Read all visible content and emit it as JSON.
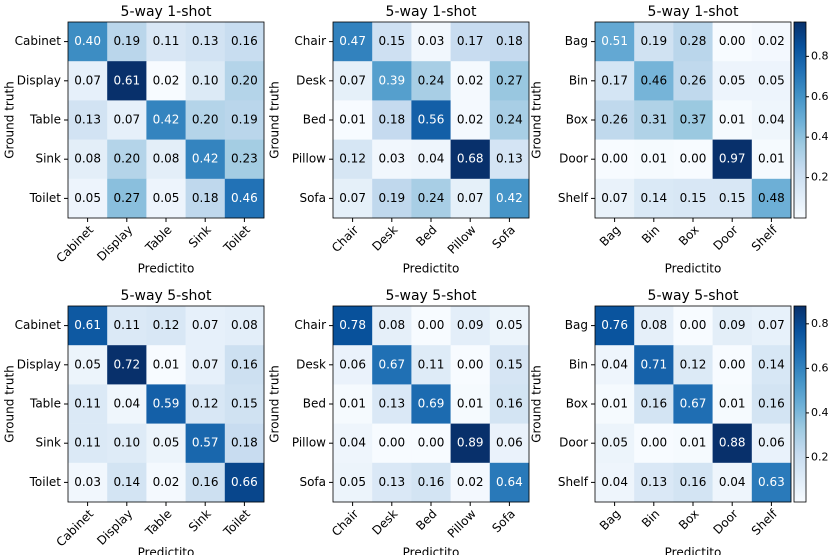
{
  "chart_data": [
    {
      "type": "heatmap",
      "title": "5-way 1-shot",
      "x_label": "Predictito",
      "y_label": "Ground truth",
      "categories": [
        "Cabinet",
        "Display",
        "Table",
        "Sink",
        "Toilet"
      ],
      "values": [
        [
          0.4,
          0.19,
          0.11,
          0.13,
          0.16
        ],
        [
          0.07,
          0.61,
          0.02,
          0.1,
          0.2
        ],
        [
          0.13,
          0.07,
          0.42,
          0.2,
          0.19
        ],
        [
          0.08,
          0.2,
          0.08,
          0.42,
          0.23
        ],
        [
          0.05,
          0.27,
          0.05,
          0.18,
          0.46
        ]
      ],
      "value_labels": [
        [
          "0.40",
          "0.19",
          "0.11",
          "0.13",
          "0.16"
        ],
        [
          "0.07",
          "0.61",
          "0.02",
          "0.10",
          "0.20"
        ],
        [
          "0.13",
          "0.07",
          "0.42",
          "0.20",
          "0.19"
        ],
        [
          "0.08",
          "0.20",
          "0.08",
          "0.42",
          "0.23"
        ],
        [
          "0.05",
          "0.27",
          "0.05",
          "0.18",
          "0.46"
        ]
      ],
      "zlim": [
        0.02,
        0.61
      ],
      "colormap": "Blues",
      "colorbar": false
    },
    {
      "type": "heatmap",
      "title": "5-way 1-shot",
      "x_label": "Predictito",
      "y_label": "Ground truth",
      "categories": [
        "Chair",
        "Desk",
        "Bed",
        "Pillow",
        "Sofa"
      ],
      "values": [
        [
          0.47,
          0.15,
          0.03,
          0.17,
          0.18
        ],
        [
          0.07,
          0.39,
          0.24,
          0.02,
          0.27
        ],
        [
          0.01,
          0.18,
          0.56,
          0.02,
          0.24
        ],
        [
          0.12,
          0.03,
          0.04,
          0.68,
          0.13
        ],
        [
          0.07,
          0.19,
          0.24,
          0.07,
          0.42
        ]
      ],
      "value_labels": [
        [
          "0.47",
          "0.15",
          "0.03",
          "0.17",
          "0.18"
        ],
        [
          "0.07",
          "0.39",
          "0.24",
          "0.02",
          "0.27"
        ],
        [
          "0.01",
          "0.18",
          "0.56",
          "0.02",
          "0.24"
        ],
        [
          "0.12",
          "0.03",
          "0.04",
          "0.68",
          "0.13"
        ],
        [
          "0.07",
          "0.19",
          "0.24",
          "0.07",
          "0.42"
        ]
      ],
      "zlim": [
        0.01,
        0.68
      ],
      "colormap": "Blues",
      "colorbar": false
    },
    {
      "type": "heatmap",
      "title": "5-way 1-shot",
      "x_label": "Predictito",
      "y_label": "Ground truth",
      "categories": [
        "Bag",
        "Bin",
        "Box",
        "Door",
        "Shelf"
      ],
      "values": [
        [
          0.51,
          0.19,
          0.28,
          0.0,
          0.02
        ],
        [
          0.17,
          0.46,
          0.26,
          0.05,
          0.05
        ],
        [
          0.26,
          0.31,
          0.37,
          0.01,
          0.04
        ],
        [
          0.0,
          0.01,
          0.0,
          0.97,
          0.01
        ],
        [
          0.07,
          0.14,
          0.15,
          0.15,
          0.48
        ]
      ],
      "value_labels": [
        [
          "0.51",
          "0.19",
          "0.28",
          "0.00",
          "0.02"
        ],
        [
          "0.17",
          "0.46",
          "0.26",
          "0.05",
          "0.05"
        ],
        [
          "0.26",
          "0.31",
          "0.37",
          "0.01",
          "0.04"
        ],
        [
          "0.00",
          "0.01",
          "0.00",
          "0.97",
          "0.01"
        ],
        [
          "0.07",
          "0.14",
          "0.15",
          "0.15",
          "0.48"
        ]
      ],
      "zlim": [
        0.0,
        0.97
      ],
      "colormap": "Blues",
      "colorbar": true,
      "colorbar_ticks": [
        0.2,
        0.4,
        0.6,
        0.8
      ]
    },
    {
      "type": "heatmap",
      "title": "5-way 5-shot",
      "x_label": "Predictito",
      "y_label": "Ground truth",
      "categories": [
        "Cabinet",
        "Display",
        "Table",
        "Sink",
        "Toilet"
      ],
      "values": [
        [
          0.61,
          0.11,
          0.12,
          0.07,
          0.08
        ],
        [
          0.05,
          0.72,
          0.01,
          0.07,
          0.16
        ],
        [
          0.11,
          0.04,
          0.59,
          0.12,
          0.15
        ],
        [
          0.11,
          0.1,
          0.05,
          0.57,
          0.18
        ],
        [
          0.03,
          0.14,
          0.02,
          0.16,
          0.66
        ]
      ],
      "value_labels": [
        [
          "0.61",
          "0.11",
          "0.12",
          "0.07",
          "0.08"
        ],
        [
          "0.05",
          "0.72",
          "0.01",
          "0.07",
          "0.16"
        ],
        [
          "0.11",
          "0.04",
          "0.59",
          "0.12",
          "0.15"
        ],
        [
          "0.11",
          "0.10",
          "0.05",
          "0.57",
          "0.18"
        ],
        [
          "0.03",
          "0.14",
          "0.02",
          "0.16",
          "0.66"
        ]
      ],
      "zlim": [
        0.01,
        0.72
      ],
      "colormap": "Blues",
      "colorbar": false
    },
    {
      "type": "heatmap",
      "title": "5-way 5-shot",
      "x_label": "Predictito",
      "y_label": "Ground truth",
      "categories": [
        "Chair",
        "Desk",
        "Bed",
        "Pillow",
        "Sofa"
      ],
      "values": [
        [
          0.78,
          0.08,
          0.0,
          0.09,
          0.05
        ],
        [
          0.06,
          0.67,
          0.11,
          0.0,
          0.15
        ],
        [
          0.01,
          0.13,
          0.69,
          0.01,
          0.16
        ],
        [
          0.04,
          0.0,
          0.0,
          0.89,
          0.06
        ],
        [
          0.05,
          0.13,
          0.16,
          0.02,
          0.64
        ]
      ],
      "value_labels": [
        [
          "0.78",
          "0.08",
          "0.00",
          "0.09",
          "0.05"
        ],
        [
          "0.06",
          "0.67",
          "0.11",
          "0.00",
          "0.15"
        ],
        [
          "0.01",
          "0.13",
          "0.69",
          "0.01",
          "0.16"
        ],
        [
          "0.04",
          "0.00",
          "0.00",
          "0.89",
          "0.06"
        ],
        [
          "0.05",
          "0.13",
          "0.16",
          "0.02",
          "0.64"
        ]
      ],
      "zlim": [
        0.0,
        0.89
      ],
      "colormap": "Blues",
      "colorbar": false
    },
    {
      "type": "heatmap",
      "title": "5-way 5-shot",
      "x_label": "Predictito",
      "y_label": "Ground truth",
      "categories": [
        "Bag",
        "Bin",
        "Box",
        "Door",
        "Shelf"
      ],
      "values": [
        [
          0.76,
          0.08,
          0.0,
          0.09,
          0.07
        ],
        [
          0.04,
          0.71,
          0.12,
          0.0,
          0.14
        ],
        [
          0.01,
          0.16,
          0.67,
          0.01,
          0.16
        ],
        [
          0.05,
          0.0,
          0.01,
          0.88,
          0.06
        ],
        [
          0.04,
          0.13,
          0.16,
          0.04,
          0.63
        ]
      ],
      "value_labels": [
        [
          "0.76",
          "0.08",
          "0.00",
          "0.09",
          "0.07"
        ],
        [
          "0.04",
          "0.71",
          "0.12",
          "0.00",
          "0.14"
        ],
        [
          "0.01",
          "0.16",
          "0.67",
          "0.01",
          "0.16"
        ],
        [
          "0.05",
          "0.00",
          "0.01",
          "0.88",
          "0.06"
        ],
        [
          "0.04",
          "0.13",
          "0.16",
          "0.04",
          "0.63"
        ]
      ],
      "zlim": [
        0.0,
        0.88
      ],
      "colormap": "Blues",
      "colorbar": true,
      "colorbar_ticks": [
        0.2,
        0.4,
        0.6,
        0.8
      ]
    }
  ]
}
